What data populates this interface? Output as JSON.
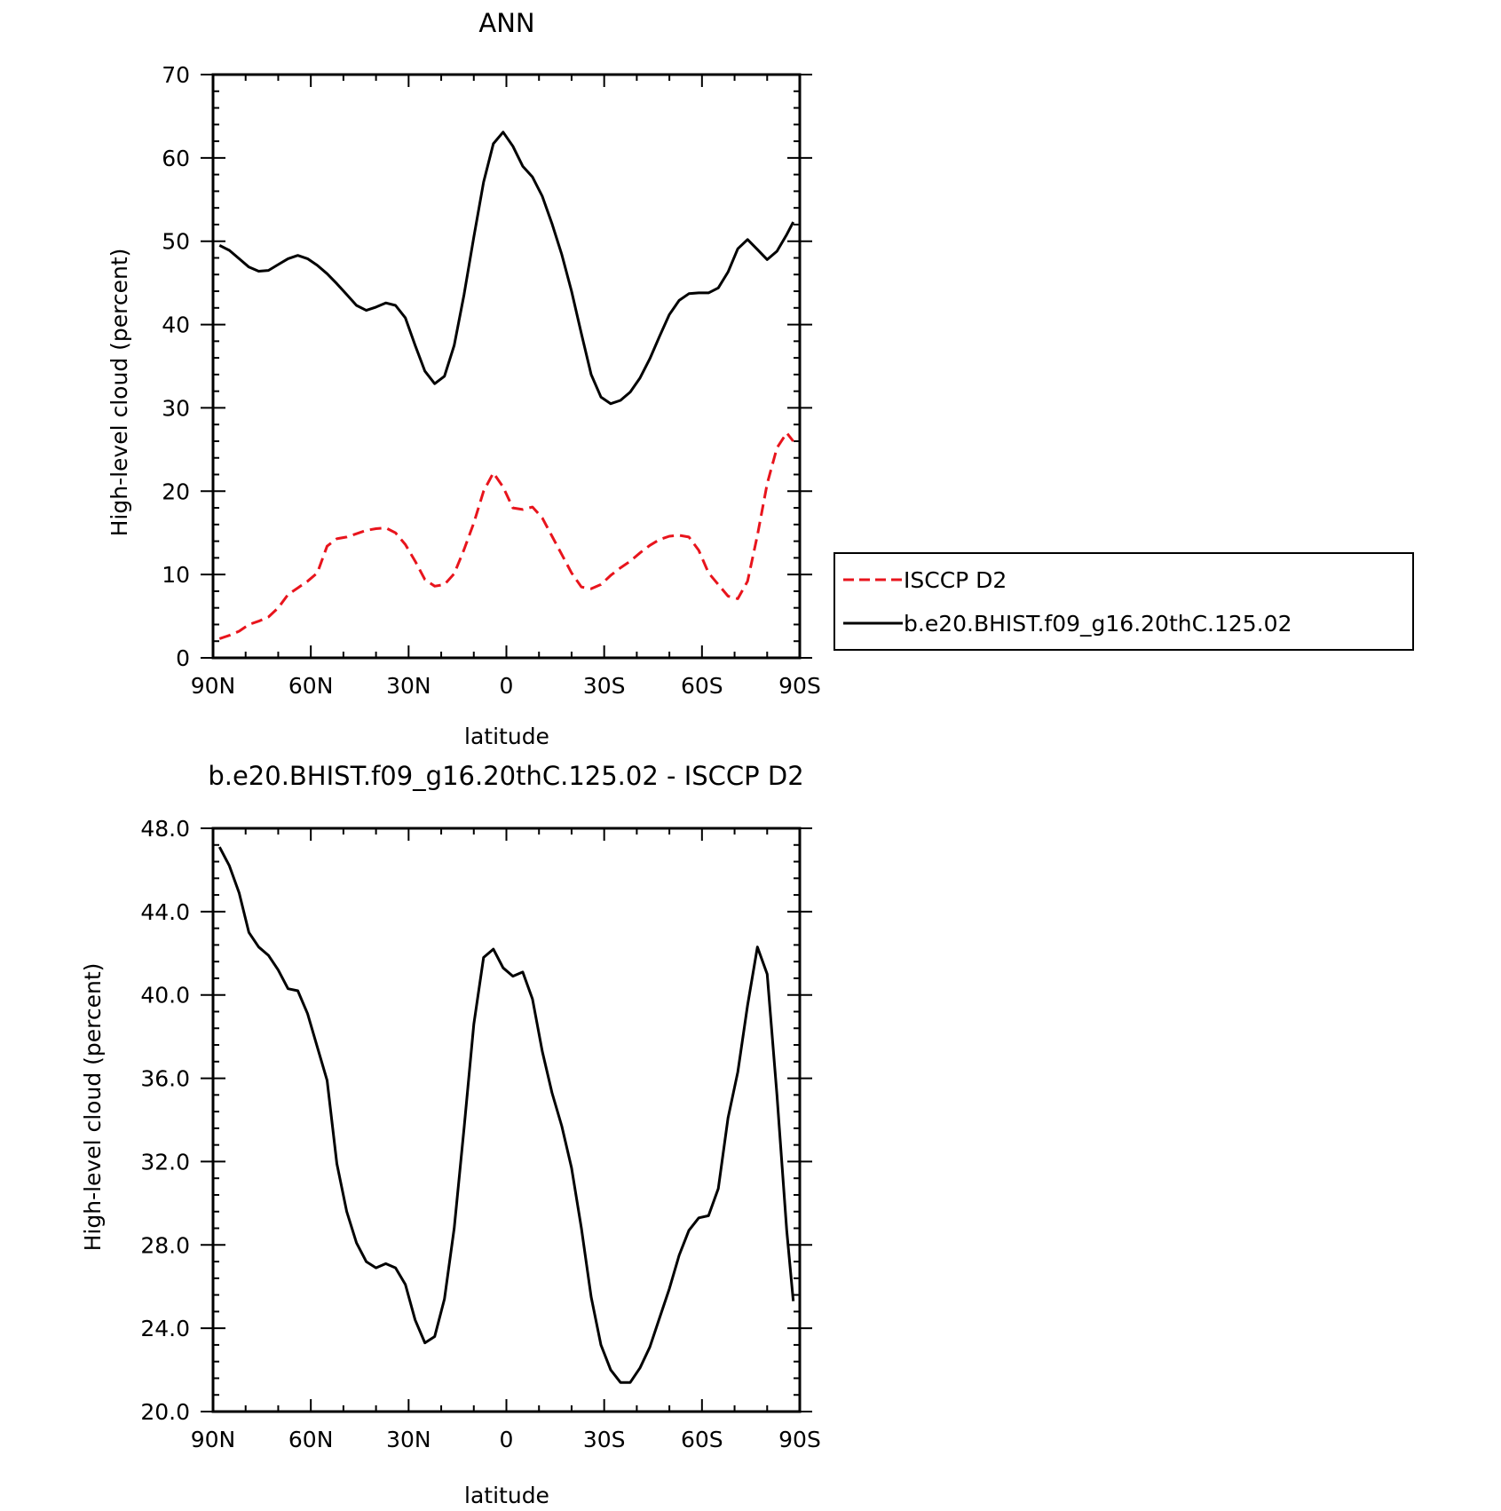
{
  "chart_data": [
    {
      "type": "line",
      "title": "ANN",
      "xlabel": "latitude",
      "ylabel": "High-level cloud (percent)",
      "xlim": [
        -90,
        90
      ],
      "ylim": [
        0,
        70
      ],
      "x_tick_values": [
        -90,
        -60,
        -30,
        0,
        30,
        60,
        90
      ],
      "x_tick_labels": [
        "90N",
        "60N",
        "30N",
        "0",
        "30S",
        "60S",
        "90S"
      ],
      "y_tick_values": [
        0,
        10,
        20,
        30,
        40,
        50,
        60,
        70
      ],
      "y_tick_labels": [
        "0",
        "10",
        "20",
        "30",
        "40",
        "50",
        "60",
        "70"
      ],
      "grid": false,
      "legend_position": "right",
      "series": [
        {
          "name": "ISCCP D2",
          "color": "#e8141c",
          "dash": "dashed",
          "x": [
            -88,
            -85,
            -82,
            -79,
            -76,
            -73,
            -70,
            -67,
            -64,
            -61,
            -58,
            -55,
            -52,
            -49,
            -46,
            -43,
            -40,
            -37,
            -34,
            -31,
            -28,
            -25,
            -22,
            -19,
            -16,
            -13,
            -10,
            -7,
            -4,
            -1,
            2,
            5,
            8,
            11,
            14,
            17,
            20,
            23,
            26,
            29,
            32,
            35,
            38,
            41,
            44,
            47,
            50,
            53,
            56,
            59,
            62,
            65,
            68,
            71,
            74,
            77,
            80,
            83,
            86,
            88
          ],
          "y": [
            2.3,
            2.7,
            3.2,
            4.0,
            4.4,
            4.9,
            6.0,
            7.6,
            8.4,
            9.2,
            10.2,
            13.4,
            14.3,
            14.5,
            14.9,
            15.3,
            15.5,
            15.6,
            15.0,
            13.6,
            11.6,
            9.4,
            8.6,
            8.8,
            10.1,
            13.0,
            16.2,
            20.0,
            22.2,
            20.5,
            18.0,
            17.8,
            18.1,
            16.8,
            14.6,
            12.4,
            10.2,
            8.5,
            8.3,
            8.8,
            9.9,
            10.8,
            11.6,
            12.6,
            13.5,
            14.2,
            14.6,
            14.7,
            14.5,
            12.9,
            10.2,
            8.8,
            7.4,
            7.1,
            9.2,
            14.7,
            20.9,
            25.2,
            27.0,
            26.0
          ]
        },
        {
          "name": "b.e20.BHIST.f09_g16.20thC.125.02",
          "color": "#000000",
          "dash": "solid",
          "x": [
            -88,
            -85,
            -82,
            -79,
            -76,
            -73,
            -70,
            -67,
            -64,
            -61,
            -58,
            -55,
            -52,
            -49,
            -46,
            -43,
            -40,
            -37,
            -34,
            -31,
            -28,
            -25,
            -22,
            -19,
            -16,
            -13,
            -10,
            -7,
            -4,
            -1,
            2,
            5,
            8,
            11,
            14,
            17,
            20,
            23,
            26,
            29,
            32,
            35,
            38,
            41,
            44,
            47,
            50,
            53,
            56,
            59,
            62,
            65,
            68,
            71,
            74,
            77,
            80,
            83,
            86,
            88
          ],
          "y": [
            49.5,
            48.9,
            47.9,
            46.9,
            46.4,
            46.5,
            47.2,
            47.9,
            48.3,
            47.9,
            47.1,
            46.1,
            44.9,
            43.6,
            42.3,
            41.7,
            42.1,
            42.6,
            42.3,
            40.8,
            37.5,
            34.4,
            32.9,
            33.8,
            37.5,
            43.6,
            50.5,
            57.1,
            61.7,
            63.1,
            61.4,
            59.0,
            57.7,
            55.4,
            52.1,
            48.4,
            44.0,
            38.9,
            34.0,
            31.3,
            30.5,
            30.9,
            31.9,
            33.6,
            35.9,
            38.6,
            41.2,
            42.9,
            43.7,
            43.8,
            43.8,
            44.4,
            46.3,
            49.1,
            50.2,
            49.0,
            47.8,
            48.8,
            50.8,
            52.3
          ]
        }
      ]
    },
    {
      "type": "line",
      "title": "b.e20.BHIST.f09_g16.20thC.125.02 - ISCCP D2",
      "xlabel": "latitude",
      "ylabel": "High-level cloud (percent)",
      "xlim": [
        -90,
        90
      ],
      "ylim": [
        20,
        48
      ],
      "x_tick_values": [
        -90,
        -60,
        -30,
        0,
        30,
        60,
        90
      ],
      "x_tick_labels": [
        "90N",
        "60N",
        "30N",
        "0",
        "30S",
        "60S",
        "90S"
      ],
      "y_tick_values": [
        20,
        24,
        28,
        32,
        36,
        40,
        44,
        48
      ],
      "y_tick_labels": [
        "20.0",
        "24.0",
        "28.0",
        "32.0",
        "36.0",
        "40.0",
        "44.0",
        "48.0"
      ],
      "grid": false,
      "series": [
        {
          "color": "#000000",
          "dash": "solid",
          "x": [
            -88,
            -85,
            -82,
            -79,
            -76,
            -73,
            -70,
            -67,
            -64,
            -61,
            -58,
            -55,
            -52,
            -49,
            -46,
            -43,
            -40,
            -37,
            -34,
            -31,
            -28,
            -25,
            -22,
            -19,
            -16,
            -13,
            -10,
            -7,
            -4,
            -1,
            2,
            5,
            8,
            11,
            14,
            17,
            20,
            23,
            26,
            29,
            32,
            35,
            38,
            41,
            44,
            47,
            50,
            53,
            56,
            59,
            62,
            65,
            68,
            71,
            74,
            77,
            80,
            83,
            86,
            88
          ],
          "y": [
            47.1,
            46.2,
            44.9,
            43.0,
            42.3,
            41.9,
            41.2,
            40.3,
            40.2,
            39.1,
            37.5,
            35.9,
            31.9,
            29.6,
            28.1,
            27.2,
            26.9,
            27.1,
            26.9,
            26.1,
            24.4,
            23.3,
            23.6,
            25.4,
            28.8,
            33.6,
            38.6,
            41.8,
            42.2,
            41.3,
            40.9,
            41.1,
            39.8,
            37.3,
            35.3,
            33.7,
            31.7,
            28.8,
            25.5,
            23.2,
            22.0,
            21.4,
            21.4,
            22.1,
            23.1,
            24.5,
            25.9,
            27.5,
            28.7,
            29.3,
            29.4,
            30.7,
            34.1,
            36.3,
            39.5,
            42.3,
            41.0,
            35.2,
            28.7,
            25.3
          ]
        }
      ]
    }
  ],
  "legend": {
    "entries": [
      {
        "label": "ISCCP D2",
        "color": "#e8141c",
        "dash": "dashed"
      },
      {
        "label": "b.e20.BHIST.f09_g16.20thC.125.02",
        "color": "#000000",
        "dash": "solid"
      }
    ]
  }
}
